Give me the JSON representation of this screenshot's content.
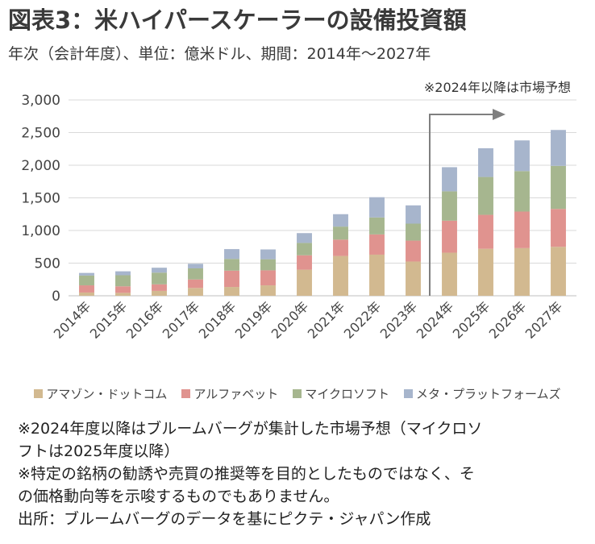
{
  "header": {
    "title": "図表3：米ハイパースケーラーの設備投資額",
    "subtitle": "年次（会計年度）、単位：億米ドル、期間：2014年～2027年"
  },
  "forecast_label": "※2024年以降は市場予想",
  "chart_data": {
    "type": "bar",
    "stacked": true,
    "categories": [
      "2014年",
      "2015年",
      "2016年",
      "2017年",
      "2018年",
      "2019年",
      "2020年",
      "2021年",
      "2022年",
      "2023年",
      "2024年",
      "2025年",
      "2026年",
      "2027年"
    ],
    "ylim": [
      0,
      3000
    ],
    "yticks": [
      0,
      500,
      1000,
      1500,
      2000,
      2500,
      3000
    ],
    "ytick_labels": [
      "0",
      "500",
      "1,000",
      "1,500",
      "2,000",
      "2,500",
      "3,000"
    ],
    "grid": true,
    "legend_position": "bottom",
    "series": [
      {
        "name": "アマゾン・ドットコム",
        "color": "#d2b990",
        "values": [
          50,
          45,
          75,
          120,
          135,
          160,
          400,
          610,
          630,
          525,
          660,
          720,
          730,
          750
        ]
      },
      {
        "name": "アルファベット",
        "color": "#e0938f",
        "values": [
          110,
          100,
          100,
          130,
          250,
          230,
          220,
          250,
          310,
          320,
          490,
          520,
          560,
          580
        ]
      },
      {
        "name": "マイクロソフト",
        "color": "#a6b68f",
        "values": [
          150,
          170,
          180,
          170,
          180,
          170,
          190,
          200,
          260,
          260,
          450,
          580,
          620,
          660
        ]
      },
      {
        "name": "メタ・プラットフォームズ",
        "color": "#a7b5cc",
        "values": [
          40,
          60,
          75,
          70,
          150,
          150,
          150,
          190,
          310,
          280,
          370,
          440,
          470,
          550
        ]
      }
    ]
  },
  "notes": [
    "※2024年度以降はブルームバーグが集計した市場予想（マイクロソ",
    "フトは2025年度以降）",
    "※特定の銘柄の勧誘や売買の推奨等を目的としたものではなく、そ",
    "の価格動向等を示唆するものでもありません。",
    "出所：ブルームバーグのデータを基にピクテ・ジャパン作成"
  ]
}
